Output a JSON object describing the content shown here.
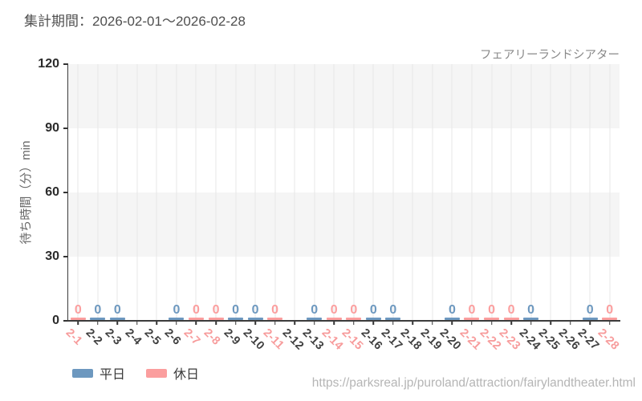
{
  "header": {
    "period_label": "集計期間：2026-02-01～2026-02-28",
    "attraction_name": "フェアリーランドシアター"
  },
  "chart_data": {
    "type": "bar",
    "title": "集計期間：2026-02-01～2026-02-28",
    "xlabel": "",
    "ylabel": "待ち時間（分）min",
    "ylim": [
      0,
      120
    ],
    "yticks": [
      0,
      30,
      60,
      90,
      120
    ],
    "grid": {
      "vertical_gridlines": true,
      "alternating_horizontal_bands": true
    },
    "legend_position": "bottom-left",
    "bar_data_label": "0",
    "categories": [
      "2-1",
      "2-2",
      "2-3",
      "2-4",
      "2-5",
      "2-6",
      "2-7",
      "2-8",
      "2-9",
      "2-10",
      "2-11",
      "2-12",
      "2-13",
      "2-14",
      "2-15",
      "2-16",
      "2-17",
      "2-18",
      "2-19",
      "2-20",
      "2-21",
      "2-22",
      "2-23",
      "2-24",
      "2-25",
      "2-26",
      "2-27",
      "2-28"
    ],
    "day_types": [
      "holiday",
      "weekday",
      "weekday",
      "weekday",
      "weekday",
      "weekday",
      "holiday",
      "holiday",
      "weekday",
      "weekday",
      "holiday",
      "weekday",
      "weekday",
      "holiday",
      "holiday",
      "weekday",
      "weekday",
      "weekday",
      "weekday",
      "weekday",
      "holiday",
      "holiday",
      "holiday",
      "weekday",
      "weekday",
      "weekday",
      "weekday",
      "holiday"
    ],
    "values": [
      0,
      0,
      0,
      null,
      null,
      0,
      0,
      0,
      0,
      0,
      0,
      null,
      0,
      0,
      0,
      0,
      0,
      null,
      null,
      0,
      0,
      0,
      0,
      0,
      null,
      null,
      0,
      0
    ],
    "series": [
      {
        "name": "平日",
        "color": "#6d98bf"
      },
      {
        "name": "休日",
        "color": "#fb9e9e"
      }
    ]
  },
  "legend": {
    "items": [
      {
        "label": "平日",
        "color": "#6d98bf"
      },
      {
        "label": "休日",
        "color": "#fb9e9e"
      }
    ]
  },
  "footer": {
    "url": "https://parksreal.jp/puroland/attraction/fairylandtheater.html"
  },
  "colors": {
    "weekday": "#6d98bf",
    "holiday": "#fb9e9e",
    "weekday_tick_label": "#3f3f3f",
    "holiday_tick_label": "#f79b9b",
    "band_gray": "#f5f5f5",
    "gridline": "#e7e7e7",
    "axis": "#3c3c3c"
  }
}
